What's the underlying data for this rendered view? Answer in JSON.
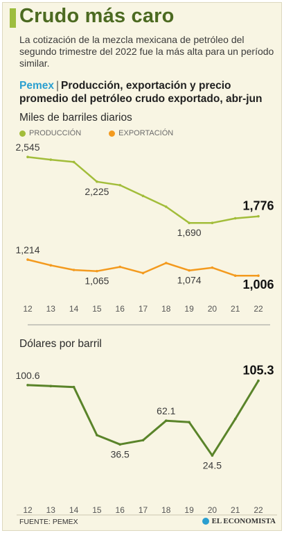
{
  "header": {
    "title": "Crudo más caro",
    "subtitle": "La cotización de la mezcla mexicana de petróleo del segundo trimestre del 2022 fue la más alta para un período similar.",
    "brand": "Pemex",
    "separator": "|",
    "heading": "Producción, exportación y precio promedio del petróleo crudo exportado, abr-jun"
  },
  "colors": {
    "production": "#a2bd3a",
    "export": "#f39a1e",
    "price": "#5a842a",
    "title": "#4c6a21",
    "brand": "#2b9fd0"
  },
  "footer": {
    "source": "FUENTE: PEMEX",
    "credit": "EL ECONOMISTA"
  },
  "chart_data": [
    {
      "type": "line",
      "title": "Miles de barriles diarios",
      "x": [
        "12",
        "13",
        "14",
        "15",
        "16",
        "17",
        "18",
        "19",
        "20",
        "21",
        "22"
      ],
      "series": [
        {
          "name": "PRODUCCIÓN",
          "color": "#a2bd3a",
          "values": [
            2545,
            2510,
            2480,
            2225,
            2180,
            2040,
            1900,
            1690,
            1690,
            1750,
            1776
          ],
          "labels": [
            {
              "index": 0,
              "text": "2,545",
              "pos": "above",
              "bold": false
            },
            {
              "index": 3,
              "text": "2,225",
              "pos": "below",
              "bold": false
            },
            {
              "index": 7,
              "text": "1,690",
              "pos": "below",
              "bold": false
            },
            {
              "index": 10,
              "text": "1,776",
              "pos": "above",
              "bold": true
            }
          ]
        },
        {
          "name": "EXPORTACIÓN",
          "color": "#f39a1e",
          "values": [
            1214,
            1140,
            1080,
            1065,
            1120,
            1040,
            1170,
            1074,
            1110,
            1006,
            1006
          ],
          "labels": [
            {
              "index": 0,
              "text": "1,214",
              "pos": "above",
              "bold": false
            },
            {
              "index": 3,
              "text": "1,065",
              "pos": "below",
              "bold": false
            },
            {
              "index": 7,
              "text": "1,074",
              "pos": "below",
              "bold": false
            },
            {
              "index": 10,
              "text": "1,006",
              "pos": "below",
              "bold": true
            }
          ]
        }
      ],
      "ylim": [
        900,
        2700
      ],
      "grid": false
    },
    {
      "type": "line",
      "title": "Dólares por barril",
      "x": [
        "12",
        "13",
        "14",
        "15",
        "16",
        "17",
        "18",
        "19",
        "20",
        "21",
        "22"
      ],
      "series": [
        {
          "name": "Precio",
          "color": "#5a842a",
          "values": [
            100.6,
            99.5,
            98.5,
            46.5,
            36.5,
            41.0,
            62.1,
            60.5,
            24.5,
            64.0,
            105.3
          ],
          "labels": [
            {
              "index": 0,
              "text": "100.6",
              "pos": "above",
              "bold": false
            },
            {
              "index": 4,
              "text": "36.5",
              "pos": "below",
              "bold": false
            },
            {
              "index": 6,
              "text": "62.1",
              "pos": "above",
              "bold": false
            },
            {
              "index": 8,
              "text": "24.5",
              "pos": "below",
              "bold": false
            },
            {
              "index": 10,
              "text": "105.3",
              "pos": "above",
              "bold": true
            }
          ]
        }
      ],
      "ylim": [
        0,
        120
      ],
      "grid": false
    }
  ]
}
